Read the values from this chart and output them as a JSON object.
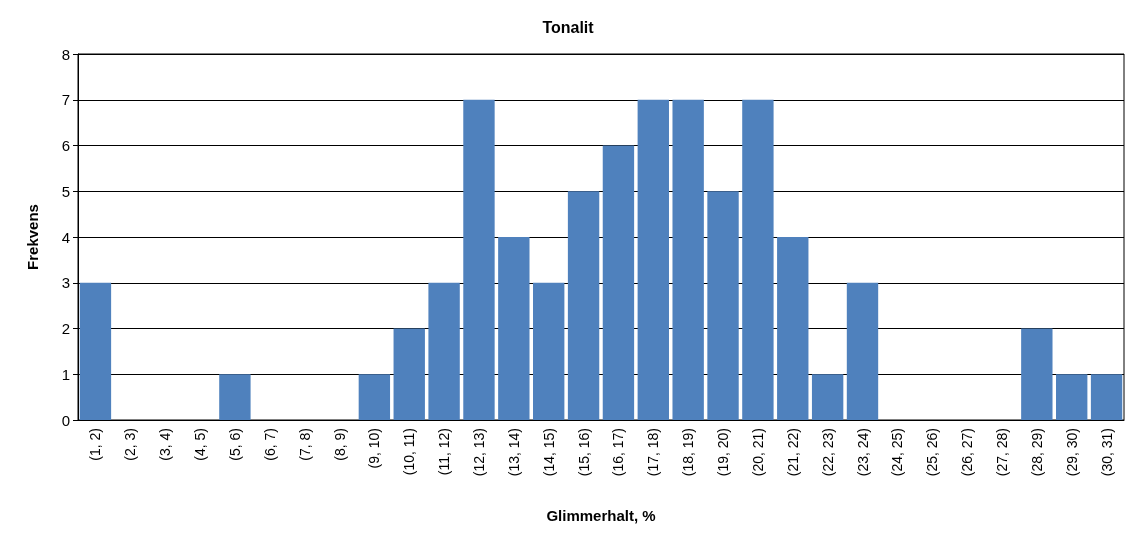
{
  "chart_data": {
    "type": "bar",
    "title": "Tonalit",
    "xlabel": "Glimmerhalt, %",
    "ylabel": "Frekvens",
    "categories": [
      "(1, 2)",
      "(2, 3)",
      "(3, 4)",
      "(4, 5)",
      "(5, 6)",
      "(6, 7)",
      "(7, 8)",
      "(8, 9)",
      "(9, 10)",
      "(10, 11)",
      "(11, 12)",
      "(12, 13)",
      "(13, 14)",
      "(14, 15)",
      "(15, 16)",
      "(16, 17)",
      "(17, 18)",
      "(18, 19)",
      "(19, 20)",
      "(20, 21)",
      "(21, 22)",
      "(22, 23)",
      "(23, 24)",
      "(24, 25)",
      "(25, 26)",
      "(26, 27)",
      "(27, 28)",
      "(28, 29)",
      "(29, 30)",
      "(30, 31)"
    ],
    "values": [
      3,
      0,
      0,
      0,
      1,
      0,
      0,
      0,
      1,
      2,
      3,
      7,
      4,
      3,
      5,
      6,
      7,
      7,
      5,
      7,
      4,
      1,
      3,
      0,
      0,
      0,
      0,
      2,
      1,
      1
    ],
    "color": "#4f81bd",
    "ylim": [
      0,
      8
    ],
    "yticks": [
      0,
      1,
      2,
      3,
      4,
      5,
      6,
      7,
      8
    ],
    "grid": "y"
  }
}
